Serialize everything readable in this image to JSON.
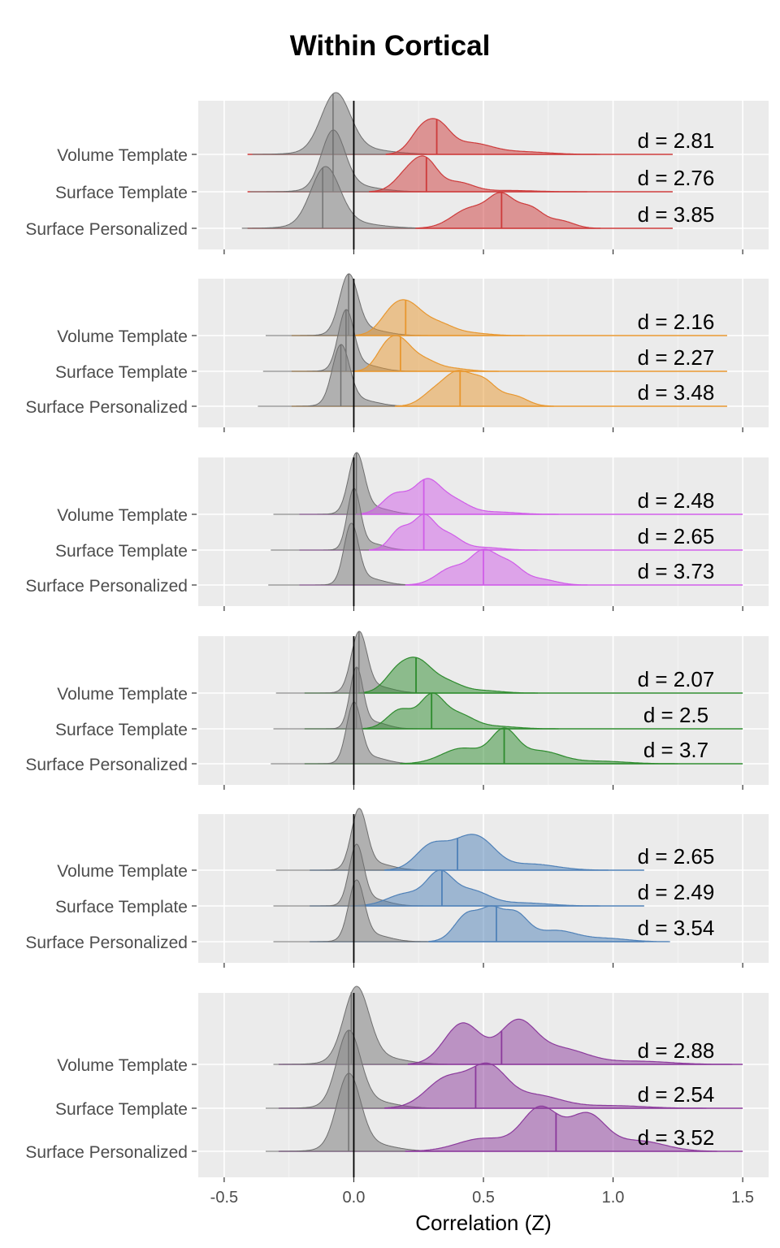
{
  "title": "Within Cortical",
  "chart_data": {
    "type": "ridgeline",
    "title": "Within Cortical",
    "xlabel": "Correlation (Z)",
    "ylabel": "",
    "xlim": [
      -0.6,
      1.6
    ],
    "x_ticks": [
      -0.5,
      0.0,
      0.5,
      1.0,
      1.5
    ],
    "x_tick_labels": [
      "-0.5",
      "0.0",
      "0.5",
      "1.0",
      "1.5"
    ],
    "reference_line_x": 0,
    "rows": [
      "Volume Template",
      "Surface Template",
      "Surface Personalized"
    ],
    "null_color": "#a6a6a6",
    "grid": true,
    "panels": [
      {
        "color": "#cd3b3b",
        "range": [
          -0.41,
          1.23
        ],
        "series": [
          {
            "row": "Volume Template",
            "d_label": "d = 2.81",
            "null_median": -0.08,
            "null_peak": -0.07,
            "null_sd": 0.055,
            "median": 0.32,
            "bumps": [
              [
                0.26,
                0.045,
                0.7
              ],
              [
                0.33,
                0.045,
                0.75
              ],
              [
                0.45,
                0.08,
                0.35
              ],
              [
                0.65,
                0.1,
                0.08
              ]
            ]
          },
          {
            "row": "Surface Template",
            "d_label": "d = 2.76",
            "null_median": -0.08,
            "null_peak": -0.08,
            "null_sd": 0.045,
            "median": 0.28,
            "bumps": [
              [
                0.21,
                0.05,
                0.6
              ],
              [
                0.28,
                0.045,
                0.85
              ],
              [
                0.4,
                0.06,
                0.3
              ],
              [
                0.6,
                0.1,
                0.04
              ]
            ]
          },
          {
            "row": "Surface Personalized",
            "d_label": "d = 3.85",
            "null_median": -0.12,
            "null_peak": -0.11,
            "null_sd": 0.055,
            "median": 0.57,
            "bumps": [
              [
                0.45,
                0.07,
                0.5
              ],
              [
                0.57,
                0.05,
                0.75
              ],
              [
                0.68,
                0.05,
                0.5
              ],
              [
                0.8,
                0.05,
                0.18
              ]
            ]
          }
        ]
      },
      {
        "color": "#e8972f",
        "range": [
          -0.24,
          1.44
        ],
        "series": [
          {
            "row": "Volume Template",
            "d_label": "d = 2.16",
            "null_median": -0.02,
            "null_peak": -0.02,
            "null_sd": 0.035,
            "median": 0.2,
            "bumps": [
              [
                0.15,
                0.05,
                0.55
              ],
              [
                0.22,
                0.05,
                0.55
              ],
              [
                0.32,
                0.06,
                0.3
              ],
              [
                0.45,
                0.07,
                0.06
              ]
            ]
          },
          {
            "row": "Surface Template",
            "d_label": "d = 2.27",
            "null_median": -0.03,
            "null_peak": -0.03,
            "null_sd": 0.03,
            "median": 0.18,
            "bumps": [
              [
                0.12,
                0.04,
                0.5
              ],
              [
                0.18,
                0.045,
                0.75
              ],
              [
                0.27,
                0.05,
                0.3
              ],
              [
                0.38,
                0.06,
                0.08
              ]
            ]
          },
          {
            "row": "Surface Personalized",
            "d_label": "d = 3.48",
            "null_median": -0.05,
            "null_peak": -0.05,
            "null_sd": 0.033,
            "median": 0.41,
            "bumps": [
              [
                0.31,
                0.05,
                0.25
              ],
              [
                0.4,
                0.05,
                0.55
              ],
              [
                0.5,
                0.05,
                0.45
              ],
              [
                0.62,
                0.05,
                0.18
              ]
            ]
          }
        ]
      },
      {
        "color": "#cf5ce8",
        "range": [
          -0.21,
          1.5
        ],
        "series": [
          {
            "row": "Volume Template",
            "d_label": "d = 2.48",
            "null_median": 0.01,
            "null_peak": 0.01,
            "null_sd": 0.03,
            "median": 0.27,
            "bumps": [
              [
                0.16,
                0.05,
                0.35
              ],
              [
                0.28,
                0.05,
                0.55
              ],
              [
                0.38,
                0.06,
                0.25
              ],
              [
                0.55,
                0.08,
                0.04
              ]
            ]
          },
          {
            "row": "Surface Template",
            "d_label": "d = 2.65",
            "null_median": 0.0,
            "null_peak": 0.0,
            "null_sd": 0.025,
            "median": 0.27,
            "bumps": [
              [
                0.18,
                0.04,
                0.4
              ],
              [
                0.27,
                0.04,
                0.6
              ],
              [
                0.36,
                0.05,
                0.3
              ],
              [
                0.5,
                0.07,
                0.05
              ]
            ]
          },
          {
            "row": "Surface Personalized",
            "d_label": "d = 3.73",
            "null_median": 0.0,
            "null_peak": -0.01,
            "null_sd": 0.028,
            "median": 0.5,
            "bumps": [
              [
                0.38,
                0.06,
                0.3
              ],
              [
                0.5,
                0.05,
                0.55
              ],
              [
                0.6,
                0.05,
                0.35
              ],
              [
                0.72,
                0.06,
                0.1
              ]
            ]
          }
        ]
      },
      {
        "color": "#2e8b2e",
        "range": [
          -0.19,
          1.5
        ],
        "series": [
          {
            "row": "Volume Template",
            "d_label": "d = 2.07",
            "null_median": 0.02,
            "null_peak": 0.02,
            "null_sd": 0.03,
            "median": 0.24,
            "bumps": [
              [
                0.17,
                0.05,
                0.45
              ],
              [
                0.25,
                0.05,
                0.55
              ],
              [
                0.35,
                0.06,
                0.25
              ],
              [
                0.5,
                0.07,
                0.05
              ]
            ]
          },
          {
            "row": "Surface Template",
            "d_label": "d = 2.5",
            "null_median": 0.01,
            "null_peak": 0.01,
            "null_sd": 0.025,
            "median": 0.3,
            "bumps": [
              [
                0.18,
                0.05,
                0.4
              ],
              [
                0.3,
                0.045,
                0.65
              ],
              [
                0.4,
                0.06,
                0.3
              ],
              [
                0.55,
                0.08,
                0.05
              ]
            ]
          },
          {
            "row": "Surface Personalized",
            "d_label": "d = 3.7",
            "null_median": 0.0,
            "null_peak": 0.0,
            "null_sd": 0.028,
            "median": 0.58,
            "bumps": [
              [
                0.42,
                0.08,
                0.25
              ],
              [
                0.58,
                0.05,
                0.5
              ],
              [
                0.72,
                0.08,
                0.2
              ],
              [
                0.95,
                0.1,
                0.04
              ]
            ]
          }
        ]
      },
      {
        "color": "#4f81b8",
        "range": [
          -0.17,
          1.12
        ],
        "series": [
          {
            "row": "Volume Template",
            "d_label": "d = 2.65",
            "null_median": 0.0,
            "null_peak": 0.02,
            "null_sd": 0.03,
            "median": 0.4,
            "bumps": [
              [
                0.3,
                0.06,
                0.4
              ],
              [
                0.42,
                0.06,
                0.35
              ],
              [
                0.5,
                0.06,
                0.35
              ],
              [
                0.68,
                0.1,
                0.1
              ]
            ]
          },
          {
            "row": "Surface Template",
            "d_label": "d = 2.49",
            "null_median": 0.0,
            "null_peak": 0.01,
            "null_sd": 0.028,
            "median": 0.34,
            "bumps": [
              [
                0.2,
                0.07,
                0.2
              ],
              [
                0.33,
                0.05,
                0.5
              ],
              [
                0.45,
                0.07,
                0.25
              ],
              [
                0.65,
                0.1,
                0.05
              ]
            ]
          },
          {
            "row": "Surface Personalized",
            "d_label": "d = 3.54",
            "null_median": 0.0,
            "null_peak": 0.01,
            "null_sd": 0.03,
            "median": 0.55,
            "bumps": [
              [
                0.44,
                0.05,
                0.45
              ],
              [
                0.53,
                0.04,
                0.4
              ],
              [
                0.62,
                0.05,
                0.45
              ],
              [
                0.78,
                0.08,
                0.18
              ],
              [
                0.98,
                0.08,
                0.05
              ]
            ]
          }
        ]
      },
      {
        "color": "#8b3a9c",
        "range": [
          -0.29,
          1.5
        ],
        "series": [
          {
            "row": "Volume Template",
            "d_label": "d = 2.88",
            "null_median": -0.01,
            "null_peak": 0.01,
            "null_sd": 0.048,
            "median": 0.57,
            "bumps": [
              [
                0.42,
                0.07,
                0.4
              ],
              [
                0.63,
                0.07,
                0.4
              ],
              [
                0.8,
                0.1,
                0.15
              ],
              [
                1.1,
                0.12,
                0.03
              ]
            ]
          },
          {
            "row": "Surface Template",
            "d_label": "d = 2.54",
            "null_median": -0.02,
            "null_peak": -0.02,
            "null_sd": 0.045,
            "median": 0.47,
            "bumps": [
              [
                0.36,
                0.08,
                0.35
              ],
              [
                0.52,
                0.07,
                0.45
              ],
              [
                0.7,
                0.1,
                0.15
              ],
              [
                1.0,
                0.12,
                0.03
              ]
            ]
          },
          {
            "row": "Surface Personalized",
            "d_label": "d = 3.52",
            "null_median": -0.02,
            "null_peak": -0.02,
            "null_sd": 0.045,
            "median": 0.78,
            "bumps": [
              [
                0.5,
                0.1,
                0.15
              ],
              [
                0.72,
                0.07,
                0.5
              ],
              [
                0.9,
                0.07,
                0.42
              ],
              [
                1.1,
                0.1,
                0.12
              ]
            ]
          }
        ]
      }
    ]
  }
}
